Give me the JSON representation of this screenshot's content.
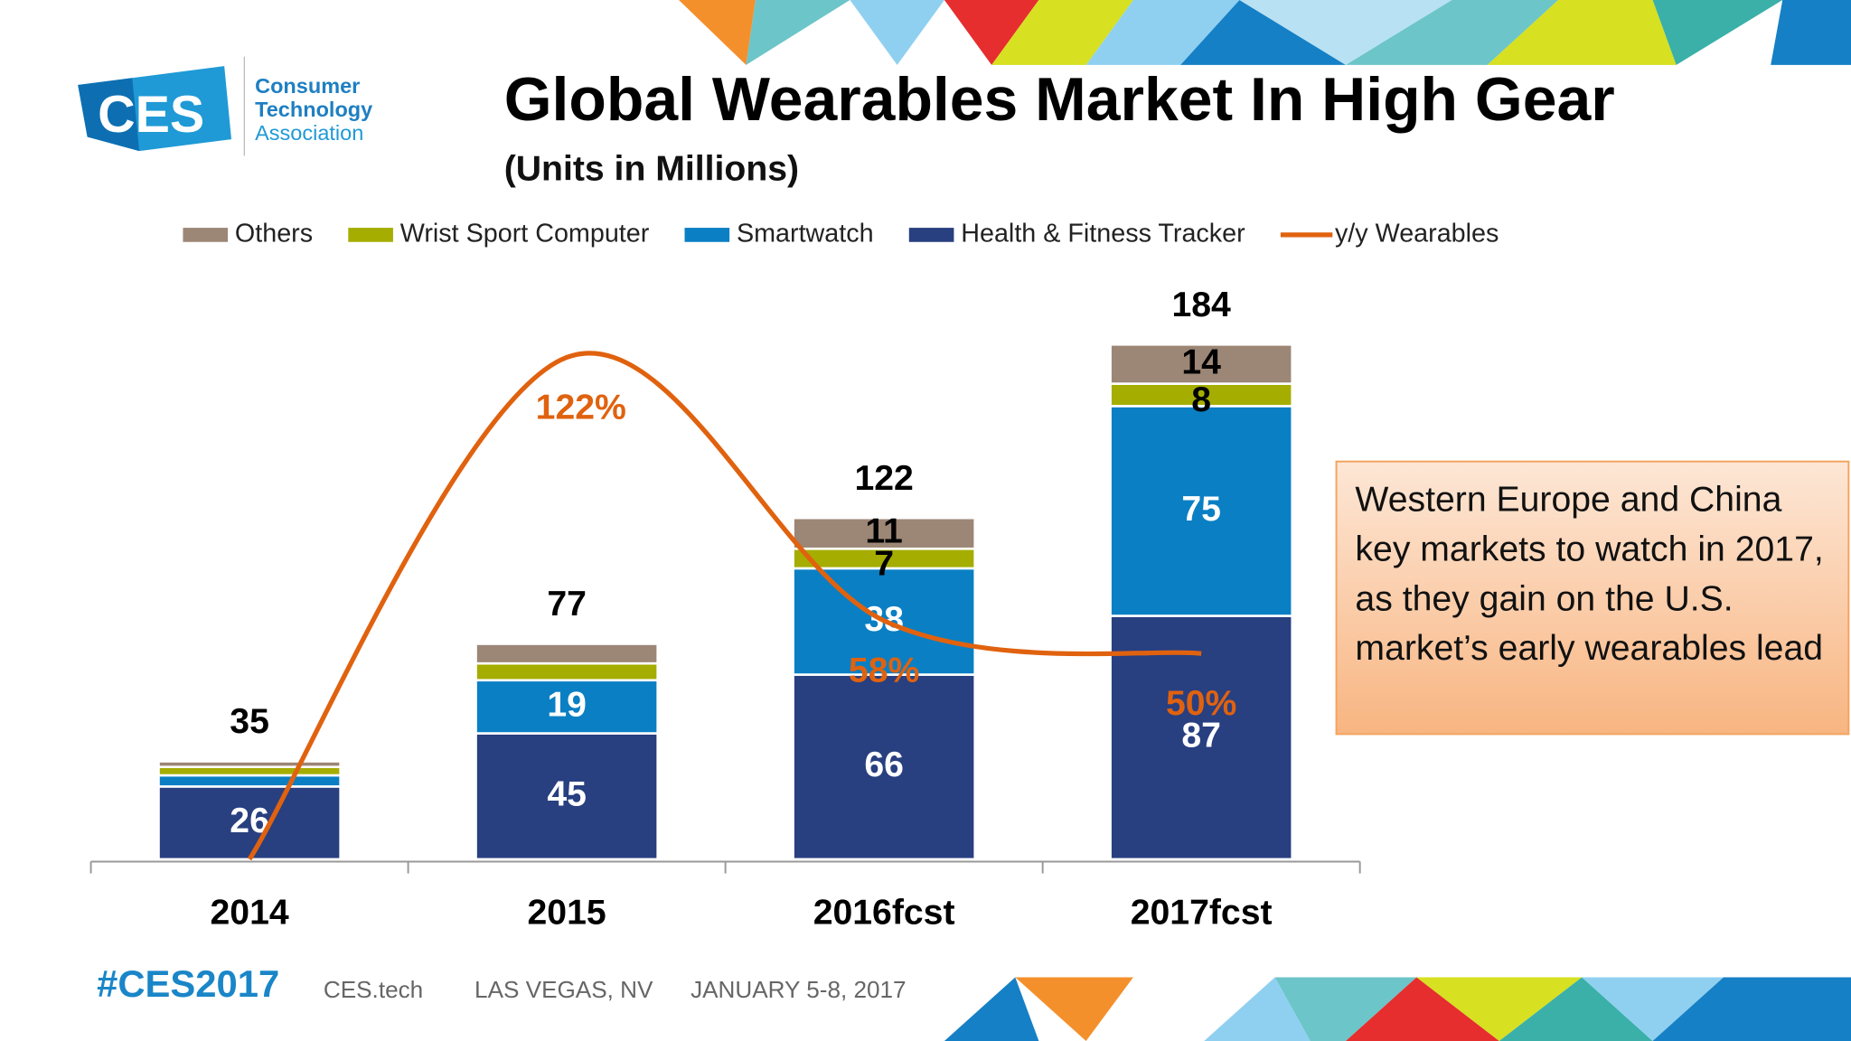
{
  "logo": {
    "mark": "CES",
    "lines": [
      "Consumer",
      "Technology",
      "Association"
    ]
  },
  "footer": {
    "hashtag": "#CES2017",
    "items": [
      "CES.tech",
      "LAS VEGAS, NV",
      "JANUARY 5-8, 2017"
    ]
  },
  "callout": "Western Europe and China key markets to watch in 2017, as they gain on the U.S. market’s early wearables lead",
  "chart_data": {
    "type": "bar",
    "stacked": true,
    "title": "Global Wearables Market In High Gear",
    "subtitle": "(Units in Millions)",
    "categories": [
      "2014",
      "2015",
      "2016fcst",
      "2017fcst"
    ],
    "series": [
      {
        "name": "Health & Fitness Tracker",
        "color": "#283f80",
        "values": [
          26,
          45,
          66,
          87
        ],
        "value_labels": [
          "26",
          "45",
          "66",
          "87"
        ]
      },
      {
        "name": "Smartwatch",
        "color": "#0a7fc4",
        "values": [
          4,
          19,
          38,
          75
        ],
        "value_labels": [
          null,
          "19",
          "38",
          "75"
        ]
      },
      {
        "name": "Wrist Sport Computer",
        "color": "#a5ad00",
        "values": [
          3,
          6,
          7,
          8
        ],
        "value_labels": [
          null,
          null,
          "7",
          "8"
        ]
      },
      {
        "name": "Others",
        "color": "#9c8676",
        "values": [
          2,
          7,
          11,
          14
        ],
        "value_labels": [
          null,
          null,
          "11",
          "14"
        ]
      },
      {
        "name": "y/y Wearables",
        "type": "line",
        "axis": "y2",
        "color": "#e0620f",
        "values": [
          0,
          122,
          58,
          50
        ],
        "value_labels": [
          null,
          "122%",
          "58%",
          "50%"
        ]
      }
    ],
    "totals": [
      35,
      77,
      122,
      184
    ],
    "ylim": [
      0,
      200
    ],
    "y2lim": [
      0,
      136
    ]
  }
}
